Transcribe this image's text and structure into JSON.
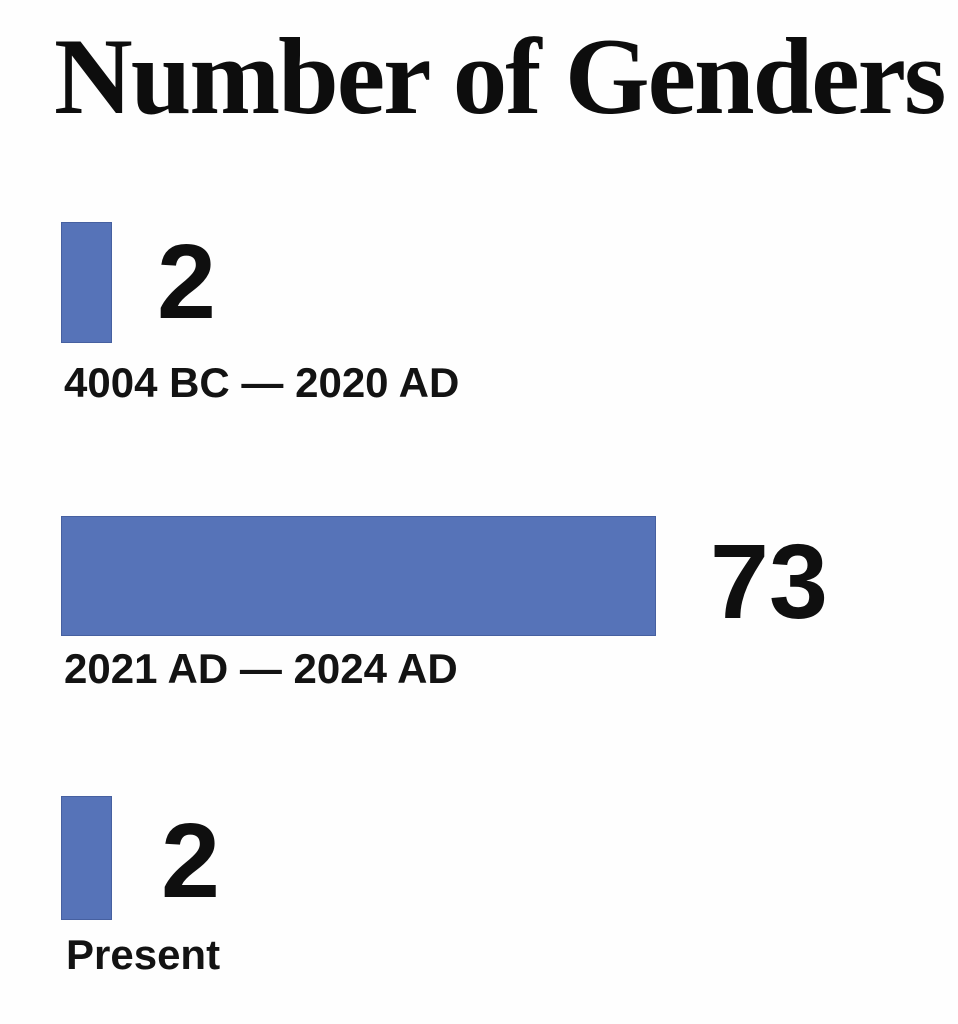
{
  "chart_data": {
    "type": "bar",
    "orientation": "horizontal",
    "title": "Number of Genders",
    "categories": [
      "4004 BC — 2020 AD",
      "2021 AD — 2024 AD",
      "Present"
    ],
    "values": [
      2,
      73,
      2
    ],
    "value_labels_shown": true,
    "axes_shown": false,
    "grid": false,
    "legend": false,
    "bars_drawn_to_scale": false,
    "bar_color": "#5673b8",
    "bar_style": "background-color:#5673b8",
    "background_color": "#fefefe",
    "text_color": "#0d0d0d"
  }
}
